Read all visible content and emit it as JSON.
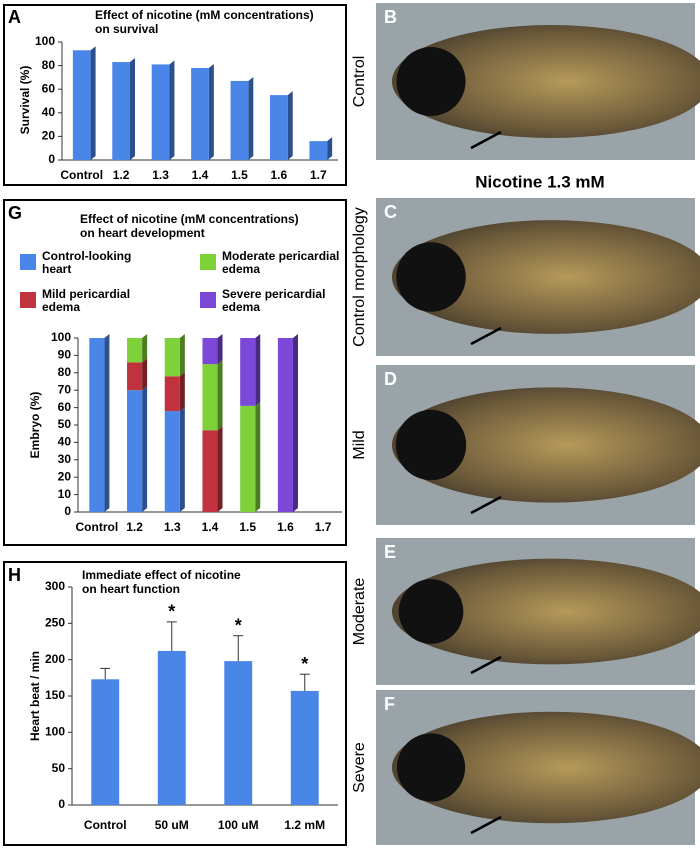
{
  "chart_data": [
    {
      "type": "bar",
      "panel": "A",
      "title": [
        "Effect of nicotine (mM concentrations)",
        "on survival"
      ],
      "y_label": "Survival (%)",
      "categories": [
        "Control",
        "1.2",
        "1.3",
        "1.4",
        "1.5",
        "1.6",
        "1.7"
      ],
      "values": [
        93,
        83,
        81,
        78,
        67,
        55,
        16
      ],
      "color": "#4a86e8",
      "ylim": [
        0,
        100
      ],
      "yticks": [
        0,
        20,
        40,
        60,
        80,
        100
      ]
    },
    {
      "type": "stacked_bar",
      "panel": "G",
      "title": [
        "Effect of nicotine (mM concentrations)",
        "on heart development"
      ],
      "y_label": "Embryo (%)",
      "categories": [
        "Control",
        "1.2",
        "1.3",
        "1.4",
        "1.5",
        "1.6",
        "1.7"
      ],
      "series": [
        {
          "name": "Control-looking heart",
          "color": "#4a86e8",
          "values": [
            100,
            70,
            58,
            null,
            null,
            null,
            null
          ]
        },
        {
          "name": "Mild pericardial edema",
          "color": "#c0333e",
          "values": [
            null,
            16,
            20,
            47,
            null,
            null,
            null
          ]
        },
        {
          "name": "Moderate pericardial edema",
          "color": "#7fd13a",
          "values": [
            null,
            14,
            22,
            38,
            61,
            null,
            null
          ]
        },
        {
          "name": "Severe pericardial edema",
          "color": "#7b48d8",
          "values": [
            null,
            null,
            null,
            15,
            39,
            100,
            null
          ]
        }
      ],
      "ylim": [
        0,
        100
      ],
      "yticks": [
        0,
        10,
        20,
        30,
        40,
        50,
        60,
        70,
        80,
        90,
        100
      ]
    },
    {
      "type": "error_bar",
      "panel": "H",
      "title": [
        "Immediate effect of nicotine",
        "on heart function"
      ],
      "y_label": "Heart beat / min",
      "categories": [
        "Control",
        "50 uM",
        "100 uM",
        "1.2 mM"
      ],
      "values": [
        173,
        212,
        198,
        157
      ],
      "errors": [
        15,
        40,
        35,
        23
      ],
      "annotations": [
        null,
        "*",
        "*",
        "*"
      ],
      "color": "#4a86e8",
      "ylim": [
        0,
        300
      ],
      "yticks": [
        0,
        50,
        100,
        150,
        200,
        250,
        300
      ]
    }
  ],
  "photo_heading": "Nicotine 1.3 mM",
  "photos": [
    {
      "label": "B",
      "caption": "Control"
    },
    {
      "label": "C",
      "caption": "Control morphology"
    },
    {
      "label": "D",
      "caption": "Mild"
    },
    {
      "label": "E",
      "caption": "Moderate"
    },
    {
      "label": "F",
      "caption": "Severe"
    }
  ]
}
